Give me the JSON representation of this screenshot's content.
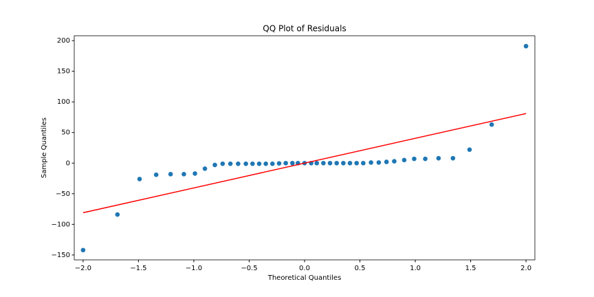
{
  "chart_data": {
    "type": "scatter",
    "title": "QQ Plot of Residuals",
    "x_label": "Theoretical Quantiles",
    "y_label": "Sample Quantiles",
    "xlim": [
      -2.08,
      2.08
    ],
    "ylim": [
      -158,
      208
    ],
    "xticks": [
      {
        "value": -2,
        "label": "−2.0"
      },
      {
        "value": -1.5,
        "label": "−1.5"
      },
      {
        "value": -1,
        "label": "−1.0"
      },
      {
        "value": -0.5,
        "label": "−0.5"
      },
      {
        "value": 0,
        "label": "0.0"
      },
      {
        "value": 0.5,
        "label": "0.5"
      },
      {
        "value": 1,
        "label": "1.0"
      },
      {
        "value": 1.5,
        "label": "1.5"
      },
      {
        "value": 2,
        "label": "2.0"
      }
    ],
    "yticks": [
      {
        "value": -150,
        "label": "−150"
      },
      {
        "value": -100,
        "label": "−100"
      },
      {
        "value": -50,
        "label": "−50"
      },
      0,
      50,
      100,
      150,
      200
    ],
    "grid": false,
    "series": [
      {
        "mode": "markers",
        "color": "#1f77b4",
        "x": [
          -2.0,
          -1.69,
          -1.49,
          -1.34,
          -1.21,
          -1.09,
          -0.99,
          -0.9,
          -0.81,
          -0.74,
          -0.67,
          -0.6,
          -0.53,
          -0.47,
          -0.41,
          -0.35,
          -0.29,
          -0.23,
          -0.17,
          -0.11,
          -0.06,
          0,
          0.06,
          0.11,
          0.17,
          0.23,
          0.29,
          0.35,
          0.41,
          0.47,
          0.53,
          0.6,
          0.67,
          0.74,
          0.81,
          0.9,
          0.99,
          1.09,
          1.21,
          1.34,
          1.49,
          1.69,
          2.0
        ],
        "values": [
          -142,
          -84,
          -26,
          -19,
          -18,
          -18,
          -17,
          -9,
          -3,
          -1,
          -1,
          -1,
          -1,
          -1,
          -1,
          -1,
          -1,
          -0.5,
          0,
          0,
          0,
          0,
          0,
          0,
          0,
          0,
          0,
          0,
          0,
          0,
          0,
          1,
          1,
          2,
          3,
          5,
          7,
          7,
          8,
          8,
          22,
          63,
          191
        ]
      },
      {
        "mode": "line",
        "color": "#ff0000",
        "x": [
          -2.0,
          2.0
        ],
        "values": [
          -81,
          81
        ]
      }
    ]
  }
}
